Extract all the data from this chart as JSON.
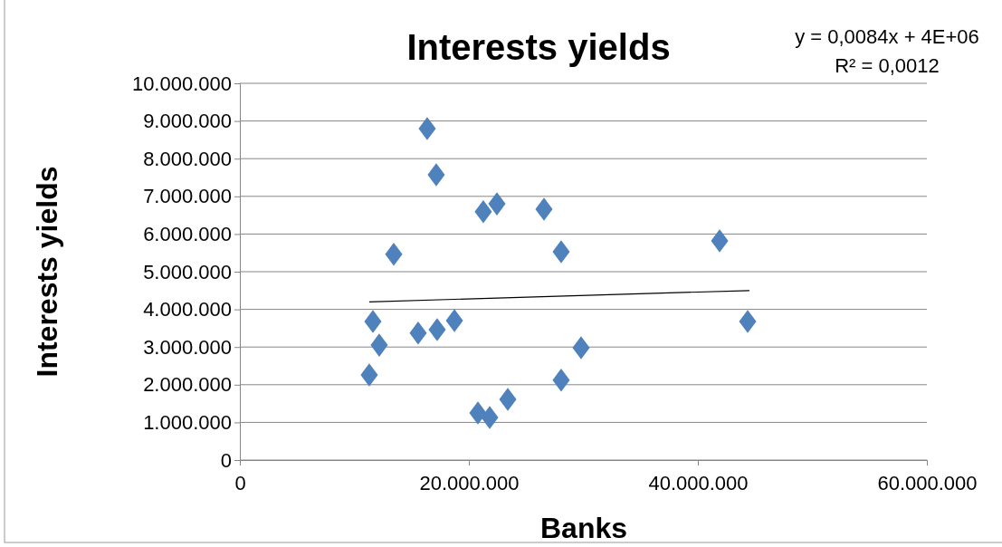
{
  "chart_data": {
    "type": "scatter",
    "title": "Interests yields",
    "xlabel": "Banks",
    "ylabel": "Interests yields",
    "xlim": [
      0,
      60000000
    ],
    "xticks": [
      0,
      {
        "value": 20000000,
        "label": "20.000.000"
      },
      {
        "value": 40000000,
        "label": "40.000.000"
      },
      {
        "value": 60000000,
        "label": "60.000.000"
      }
    ],
    "ylim": [
      0,
      10000000
    ],
    "yticks": [
      0,
      {
        "value": 1000000,
        "label": "1.000.000"
      },
      {
        "value": 2000000,
        "label": "2.000.000"
      },
      {
        "value": 3000000,
        "label": "3.000.000"
      },
      {
        "value": 4000000,
        "label": "4.000.000"
      },
      {
        "value": 5000000,
        "label": "5.000.000"
      },
      {
        "value": 6000000,
        "label": "6.000.000"
      },
      {
        "value": 7000000,
        "label": "7.000.000"
      },
      {
        "value": 8000000,
        "label": "8.000.000"
      },
      {
        "value": 9000000,
        "label": "9.000.000"
      },
      {
        "value": 10000000,
        "label": "10.000.000"
      }
    ],
    "grid": "y",
    "marker": "diamond",
    "series": [
      {
        "color": "#4f81bd",
        "x": [
          16360000,
          17150000,
          22450000,
          21260000,
          26560000,
          13440000,
          28060000,
          41900000,
          11620000,
          44350000,
          18740000,
          15570000,
          17230000,
          12170000,
          29800000,
          11300000,
          28060000,
          23400000,
          20790000,
          21820000
        ],
        "values": [
          8800000,
          7570000,
          6800000,
          6590000,
          6660000,
          5460000,
          5530000,
          5820000,
          3680000,
          3680000,
          3700000,
          3370000,
          3460000,
          3050000,
          2980000,
          2260000,
          2120000,
          1610000,
          1250000,
          1130000
        ]
      },
      {
        "type": "line",
        "color": "#000000",
        "marker": "none",
        "x": [
          11300000,
          44500000
        ],
        "values": [
          4200000,
          4500000
        ]
      }
    ],
    "annotations": [
      "y = 0,0084x + 4E+06",
      "R² = 0,0012"
    ]
  }
}
